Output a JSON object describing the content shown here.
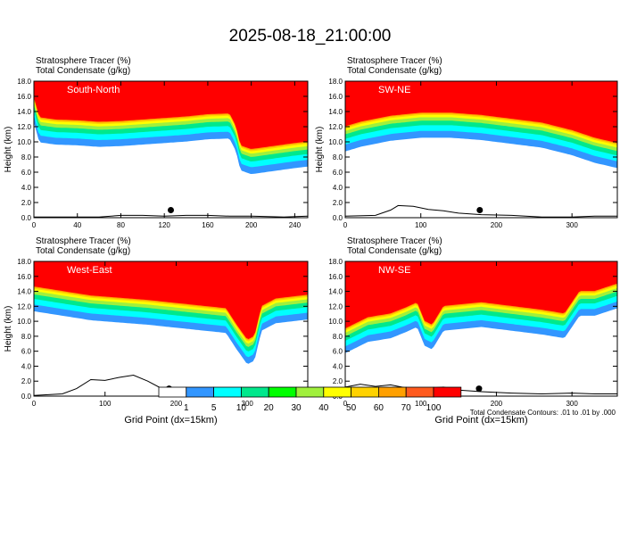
{
  "title": "2025-08-18_21:00:00",
  "colors": [
    "#ffffff",
    "#3296ff",
    "#00ffff",
    "#00e88c",
    "#00ff00",
    "#a0f03c",
    "#ffff00",
    "#ffd200",
    "#ffa000",
    "#ff5a1e",
    "#ff0000"
  ],
  "colorbar_labels": [
    "1",
    "5",
    "10",
    "20",
    "30",
    "40",
    "50",
    "60",
    "70",
    "100"
  ],
  "contour_note": "Total Condensate Contours: .01 to .01 by .000",
  "chart_data": [
    {
      "type": "heatmap",
      "subtitle_line1": "Stratosphere Tracer   (%)",
      "subtitle_line2": "Total Condensate   (g/kg)",
      "panel_label": "South-North",
      "ylabel": "Height (km)",
      "xlabel": "",
      "xlim": [
        0,
        252
      ],
      "ylim": [
        0,
        18
      ],
      "xticks": [
        0,
        40,
        80,
        120,
        160,
        200,
        240
      ],
      "yticks": [
        0,
        2,
        4,
        6,
        8,
        10,
        12,
        14,
        16,
        18
      ],
      "tracer_base_km": [
        [
          0,
          15.8
        ],
        [
          5,
          13.2
        ],
        [
          20,
          12.9
        ],
        [
          40,
          12.8
        ],
        [
          60,
          12.6
        ],
        [
          80,
          12.7
        ],
        [
          100,
          12.9
        ],
        [
          120,
          13.1
        ],
        [
          140,
          13.3
        ],
        [
          160,
          13.6
        ],
        [
          180,
          13.7
        ],
        [
          186,
          12.0
        ],
        [
          190,
          9.5
        ],
        [
          200,
          9.0
        ],
        [
          220,
          9.4
        ],
        [
          240,
          9.8
        ],
        [
          252,
          10.0
        ]
      ],
      "terrain_km": [
        [
          0,
          0.1
        ],
        [
          60,
          0.1
        ],
        [
          80,
          0.3
        ],
        [
          100,
          0.3
        ],
        [
          120,
          0.2
        ],
        [
          140,
          0.3
        ],
        [
          160,
          0.3
        ],
        [
          180,
          0.2
        ],
        [
          200,
          0.2
        ],
        [
          230,
          0.1
        ],
        [
          252,
          0.2
        ]
      ],
      "marker": [
        126,
        1.0
      ]
    },
    {
      "type": "heatmap",
      "subtitle_line1": "Stratosphere Tracer   (%)",
      "subtitle_line2": "Total Condensate   (g/kg)",
      "panel_label": "SW-NE",
      "ylabel": "Height (km)",
      "xlabel": "",
      "xlim": [
        0,
        360
      ],
      "ylim": [
        0,
        18
      ],
      "xticks": [
        0,
        100,
        200,
        300
      ],
      "yticks": [
        0,
        2,
        4,
        6,
        8,
        10,
        12,
        14,
        16,
        18
      ],
      "tracer_base_km": [
        [
          0,
          12.0
        ],
        [
          20,
          12.6
        ],
        [
          60,
          13.4
        ],
        [
          100,
          13.8
        ],
        [
          140,
          13.8
        ],
        [
          180,
          13.5
        ],
        [
          220,
          13.0
        ],
        [
          260,
          12.5
        ],
        [
          300,
          11.5
        ],
        [
          330,
          10.5
        ],
        [
          360,
          9.8
        ]
      ],
      "terrain_km": [
        [
          0,
          0.2
        ],
        [
          40,
          0.3
        ],
        [
          60,
          1.0
        ],
        [
          70,
          1.6
        ],
        [
          90,
          1.5
        ],
        [
          110,
          1.1
        ],
        [
          130,
          0.9
        ],
        [
          150,
          0.6
        ],
        [
          180,
          0.4
        ],
        [
          220,
          0.3
        ],
        [
          260,
          0.1
        ],
        [
          300,
          0.1
        ],
        [
          330,
          0.2
        ],
        [
          360,
          0.2
        ]
      ],
      "marker": [
        178,
        1.0
      ]
    },
    {
      "type": "heatmap",
      "subtitle_line1": "Stratosphere Tracer   (%)",
      "subtitle_line2": "Total Condensate   (g/kg)",
      "panel_label": "West-East",
      "ylabel": "Height (km)",
      "xlabel": "Grid Point (dx=15km)",
      "xlim": [
        0,
        385
      ],
      "ylim": [
        0,
        18
      ],
      "xticks": [
        0,
        100,
        200,
        300
      ],
      "yticks": [
        0,
        2,
        4,
        6,
        8,
        10,
        12,
        14,
        16,
        18
      ],
      "tracer_base_km": [
        [
          0,
          14.6
        ],
        [
          40,
          14.0
        ],
        [
          80,
          13.4
        ],
        [
          120,
          13.1
        ],
        [
          160,
          12.8
        ],
        [
          200,
          12.4
        ],
        [
          240,
          12.0
        ],
        [
          270,
          11.7
        ],
        [
          285,
          9.5
        ],
        [
          300,
          7.5
        ],
        [
          310,
          8.0
        ],
        [
          320,
          12.0
        ],
        [
          340,
          13.0
        ],
        [
          385,
          13.5
        ]
      ],
      "terrain_km": [
        [
          0,
          0.1
        ],
        [
          40,
          0.3
        ],
        [
          60,
          1.0
        ],
        [
          80,
          2.2
        ],
        [
          100,
          2.1
        ],
        [
          120,
          2.5
        ],
        [
          140,
          2.8
        ],
        [
          160,
          2.0
        ],
        [
          180,
          1.0
        ],
        [
          200,
          0.5
        ],
        [
          240,
          0.3
        ],
        [
          280,
          0.3
        ],
        [
          300,
          0.6
        ],
        [
          330,
          0.4
        ],
        [
          385,
          0.3
        ]
      ],
      "marker": [
        190,
        1.0
      ]
    },
    {
      "type": "heatmap",
      "subtitle_line1": "Stratosphere Tracer   (%)",
      "subtitle_line2": "Total Condensate   (g/kg)",
      "panel_label": "NW-SE",
      "ylabel": "",
      "xlabel": "Grid Point (dx=15km)",
      "xlim": [
        0,
        360
      ],
      "ylim": [
        0,
        18
      ],
      "xticks": [
        0,
        100,
        200,
        300
      ],
      "yticks": [
        0,
        2,
        4,
        6,
        8,
        10,
        12,
        14,
        16,
        18
      ],
      "tracer_base_km": [
        [
          0,
          9.0
        ],
        [
          30,
          10.5
        ],
        [
          60,
          11.0
        ],
        [
          80,
          11.8
        ],
        [
          95,
          12.5
        ],
        [
          105,
          10.0
        ],
        [
          115,
          9.5
        ],
        [
          130,
          12.0
        ],
        [
          180,
          12.5
        ],
        [
          220,
          12.0
        ],
        [
          260,
          11.5
        ],
        [
          290,
          11.0
        ],
        [
          310,
          14.0
        ],
        [
          330,
          14.0
        ],
        [
          360,
          15.0
        ]
      ],
      "terrain_km": [
        [
          0,
          1.2
        ],
        [
          20,
          1.6
        ],
        [
          40,
          1.3
        ],
        [
          60,
          1.5
        ],
        [
          80,
          1.1
        ],
        [
          100,
          1.0
        ],
        [
          130,
          1.2
        ],
        [
          150,
          0.8
        ],
        [
          180,
          0.6
        ],
        [
          220,
          0.4
        ],
        [
          260,
          0.3
        ],
        [
          300,
          0.4
        ],
        [
          330,
          0.3
        ],
        [
          360,
          0.3
        ]
      ],
      "marker": [
        177,
        1.0
      ]
    }
  ]
}
